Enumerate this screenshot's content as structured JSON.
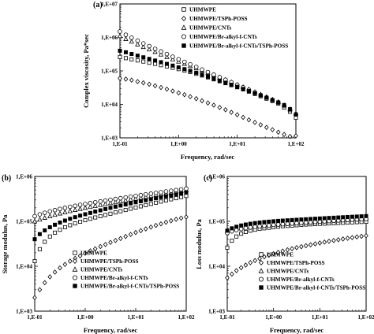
{
  "chart_data": [
    {
      "type": "scatter",
      "panel_label": "(a)",
      "xlabel": "Frequency, rad/sec",
      "ylabel": "Complex viscosity, Pa*sec",
      "xscale": "log",
      "yscale": "log",
      "xlim": [
        0.1,
        100
      ],
      "ylim": [
        1000,
        10000000
      ],
      "xticks": [
        "1,E-01",
        "1,E+00",
        "1,E+01",
        "1,E+02"
      ],
      "yticks": [
        "1,E+03",
        "1,E+04",
        "1,E+05",
        "1,E+06",
        "1,E+07"
      ],
      "grid": false,
      "legend_position": "top-right",
      "x": [
        0.1,
        0.126,
        0.158,
        0.2,
        0.251,
        0.316,
        0.398,
        0.501,
        0.631,
        0.794,
        1.0,
        1.26,
        1.58,
        2.0,
        2.51,
        3.16,
        3.98,
        5.01,
        6.31,
        7.94,
        10.0,
        12.6,
        15.8,
        20.0,
        25.1,
        31.6,
        39.8,
        50.1,
        63.1,
        79.4,
        100.0
      ],
      "series": [
        {
          "name": "UHMWPE",
          "marker": "square-open",
          "values": [
            260000,
            240000,
            220000,
            205000,
            190000,
            175000,
            162000,
            148000,
            136000,
            124000,
            113000,
            102000,
            92000,
            82000,
            73000,
            64000,
            56000,
            49000,
            43000,
            37500,
            32500,
            28000,
            24000,
            20500,
            17500,
            14800,
            12500,
            10500,
            8000,
            6000,
            4000
          ]
        },
        {
          "name": "UHMWPE/TSPh-POSS",
          "marker": "diamond-open",
          "values": [
            60000,
            57000,
            53000,
            48000,
            44000,
            40000,
            36000,
            32000,
            28500,
            25000,
            22000,
            19500,
            17000,
            14800,
            12800,
            11000,
            9500,
            8100,
            6900,
            5800,
            4900,
            4100,
            3450,
            2900,
            2450,
            2050,
            1750,
            1480,
            1260,
            1100,
            1150
          ]
        },
        {
          "name": "UHMWPE/CNTs",
          "marker": "triangle-open",
          "values": [
            1100000,
            900000,
            750000,
            620000,
            520000,
            440000,
            370000,
            310000,
            262000,
            222000,
            190000,
            163000,
            140000,
            120000,
            103000,
            88000,
            75000,
            64000,
            54000,
            46000,
            39000,
            33000,
            28000,
            23500,
            19800,
            16700,
            14000,
            11800,
            9500,
            7200,
            5300
          ]
        },
        {
          "name": "UHMWPE/Br-alkyl-f-CNTs",
          "marker": "circle-open",
          "values": [
            1500000,
            1200000,
            980000,
            800000,
            660000,
            550000,
            455000,
            380000,
            318000,
            265000,
            222000,
            186000,
            156000,
            131000,
            110000,
            92000,
            77500,
            65000,
            54500,
            45800,
            38500,
            32300,
            27100,
            22800,
            19100,
            16100,
            13500,
            11300,
            9000,
            6800,
            5000
          ]
        },
        {
          "name": "UHMWPE/Br-alkyl-f-CNTs/TSPh-POSS",
          "marker": "square-filled",
          "values": [
            400000,
            360000,
            320000,
            285000,
            255000,
            228000,
            204000,
            182000,
            162000,
            144000,
            128000,
            113000,
            100000,
            88000,
            77000,
            67000,
            58500,
            51000,
            44500,
            38500,
            33500,
            29000,
            25000,
            21500,
            18500,
            15800,
            13500,
            11500,
            9500,
            7200,
            5000
          ]
        }
      ]
    },
    {
      "type": "scatter",
      "panel_label": "(b)",
      "xlabel": "Frequency, rad/sec",
      "ylabel": "Storage modulus, Pa",
      "xscale": "log",
      "yscale": "log",
      "xlim": [
        0.1,
        100
      ],
      "ylim": [
        1000,
        1000000
      ],
      "xticks": [
        "1,E-01",
        "1,E+00",
        "1,E+01",
        "1,E+02"
      ],
      "yticks": [
        "1,E+03",
        "1,E+04",
        "1,E+05",
        "1,E+06"
      ],
      "grid": false,
      "legend_position": "bottom-right",
      "x": [
        0.1,
        0.126,
        0.158,
        0.2,
        0.251,
        0.316,
        0.398,
        0.501,
        0.631,
        0.794,
        1.0,
        1.26,
        1.58,
        2.0,
        2.51,
        3.16,
        3.98,
        5.01,
        6.31,
        7.94,
        10.0,
        12.6,
        15.8,
        20.0,
        25.1,
        31.6,
        39.8,
        50.1,
        63.1,
        79.4,
        100.0
      ],
      "series": [
        {
          "name": "UHMWPE",
          "marker": "square-open",
          "values": [
            13000,
            24000,
            35000,
            46000,
            56000,
            65000,
            74000,
            82000,
            90000,
            98000,
            106000,
            114000,
            122000,
            130000,
            139000,
            148000,
            158000,
            168000,
            179000,
            191000,
            203000,
            216000,
            230000,
            245000,
            260000,
            276000,
            292000,
            310000,
            328000,
            347000,
            368000
          ]
        },
        {
          "name": "UHMWPE/TSPh-POSS",
          "marker": "diamond-open",
          "values": [
            2000,
            3000,
            4300,
            5800,
            7400,
            9200,
            11000,
            13000,
            15000,
            17000,
            19500,
            22000,
            24500,
            27500,
            30500,
            34000,
            37500,
            41500,
            46000,
            51000,
            56500,
            62000,
            68000,
            74500,
            81000,
            88000,
            95500,
            103000,
            111000,
            118000,
            125000
          ]
        },
        {
          "name": "UHMWPE/CNTs",
          "marker": "triangle-open",
          "values": [
            100000,
            110000,
            120000,
            130000,
            140000,
            150000,
            160000,
            170000,
            180000,
            190000,
            200000,
            210000,
            221000,
            232000,
            243000,
            255000,
            267000,
            280000,
            293000,
            307000,
            321000,
            336000,
            352000,
            368000,
            385000,
            403000,
            421000,
            440000,
            460000,
            480000,
            500000
          ]
        },
        {
          "name": "UHMWPE/Br-alkyl-f-CNTs",
          "marker": "circle-open",
          "values": [
            130000,
            143000,
            155000,
            167000,
            178000,
            189000,
            200000,
            211000,
            222000,
            233000,
            244000,
            255000,
            266000,
            278000,
            290000,
            302000,
            315000,
            328000,
            341000,
            355000,
            369000,
            384000,
            399000,
            414000,
            430000,
            446000,
            463000,
            480000,
            498000,
            516000,
            535000
          ]
        },
        {
          "name": "UHMWPE/Br-alkyl-f-CNTs/TSPh-POSS",
          "marker": "square-filled",
          "values": [
            40000,
            52000,
            63000,
            74000,
            84000,
            94000,
            104000,
            114000,
            124000,
            134000,
            144000,
            154000,
            165000,
            176000,
            188000,
            200000,
            212000,
            225000,
            238000,
            252000,
            266000,
            281000,
            296000,
            312000,
            328000,
            345000,
            362000,
            380000,
            398000,
            417000,
            437000
          ]
        }
      ]
    },
    {
      "type": "scatter",
      "panel_label": "(c)",
      "xlabel": "Frequency, rad/sec",
      "ylabel": "Loss modulus, Pa",
      "xscale": "log",
      "yscale": "log",
      "xlim": [
        0.1,
        100
      ],
      "ylim": [
        1000,
        1000000
      ],
      "xticks": [
        "1,E-01",
        "1,E+00",
        "1,E+01",
        "1,E+02"
      ],
      "yticks": [
        "1,E+03",
        "1,E+04",
        "1,E+05",
        "1,E+06"
      ],
      "grid": false,
      "legend_position": "bottom-right",
      "x": [
        0.1,
        0.126,
        0.158,
        0.2,
        0.251,
        0.316,
        0.398,
        0.501,
        0.631,
        0.794,
        1.0,
        1.26,
        1.58,
        2.0,
        2.51,
        3.16,
        3.98,
        5.01,
        6.31,
        7.94,
        10.0,
        12.6,
        15.8,
        20.0,
        25.1,
        31.6,
        39.8,
        50.1,
        63.1,
        79.4,
        100.0
      ],
      "series": [
        {
          "name": "UHMWPE",
          "marker": "square-open",
          "values": [
            26000,
            37000,
            46000,
            53000,
            58000,
            62000,
            65000,
            68000,
            70000,
            72000,
            74000,
            76000,
            78000,
            79000,
            80500,
            82000,
            83500,
            85000,
            86000,
            87000,
            88000,
            89000,
            90000,
            91000,
            92000,
            93000,
            94000,
            95000,
            96000,
            97000,
            98000
          ]
        },
        {
          "name": "UHMWPE/TSPh-POSS",
          "marker": "diamond-open",
          "values": [
            5500,
            6700,
            8000,
            9300,
            10600,
            12000,
            13400,
            14800,
            16200,
            17600,
            19000,
            20400,
            21800,
            23200,
            24600,
            26000,
            27300,
            28700,
            30000,
            31500,
            33000,
            34500,
            36000,
            37500,
            39000,
            40500,
            42000,
            43500,
            45000,
            46500,
            48000
          ]
        },
        {
          "name": "UHMWPE/CNTs",
          "marker": "triangle-open",
          "values": [
            60000,
            65000,
            69000,
            72000,
            75000,
            77500,
            80000,
            82000,
            84000,
            86000,
            88000,
            89500,
            91000,
            92500,
            94000,
            95500,
            97000,
            98500,
            100000,
            101500,
            103000,
            104500,
            106000,
            107500,
            109000,
            110500,
            112000,
            113500,
            115000,
            116500,
            118000
          ]
        },
        {
          "name": "UHMWPE/Br-alkyl-f-CNTs",
          "marker": "circle-open",
          "values": [
            55000,
            60000,
            64000,
            67500,
            70500,
            73000,
            75500,
            77500,
            79500,
            81500,
            83500,
            85000,
            86500,
            88000,
            89500,
            91000,
            92500,
            94000,
            95500,
            97000,
            98500,
            100000,
            101500,
            103000,
            104500,
            106000,
            107500,
            109000,
            110500,
            112000,
            113500
          ]
        },
        {
          "name": "UHMWPE/Br-alkyl-f-CNTs/TSPh-POSS",
          "marker": "square-filled",
          "values": [
            62000,
            70000,
            76000,
            81000,
            85000,
            88500,
            91500,
            94000,
            96500,
            98500,
            100500,
            102500,
            104000,
            105500,
            107000,
            108500,
            110000,
            111500,
            113000,
            114500,
            116000,
            117500,
            119000,
            120500,
            122000,
            123500,
            125000,
            126500,
            128000,
            129500,
            131000
          ]
        }
      ]
    }
  ]
}
